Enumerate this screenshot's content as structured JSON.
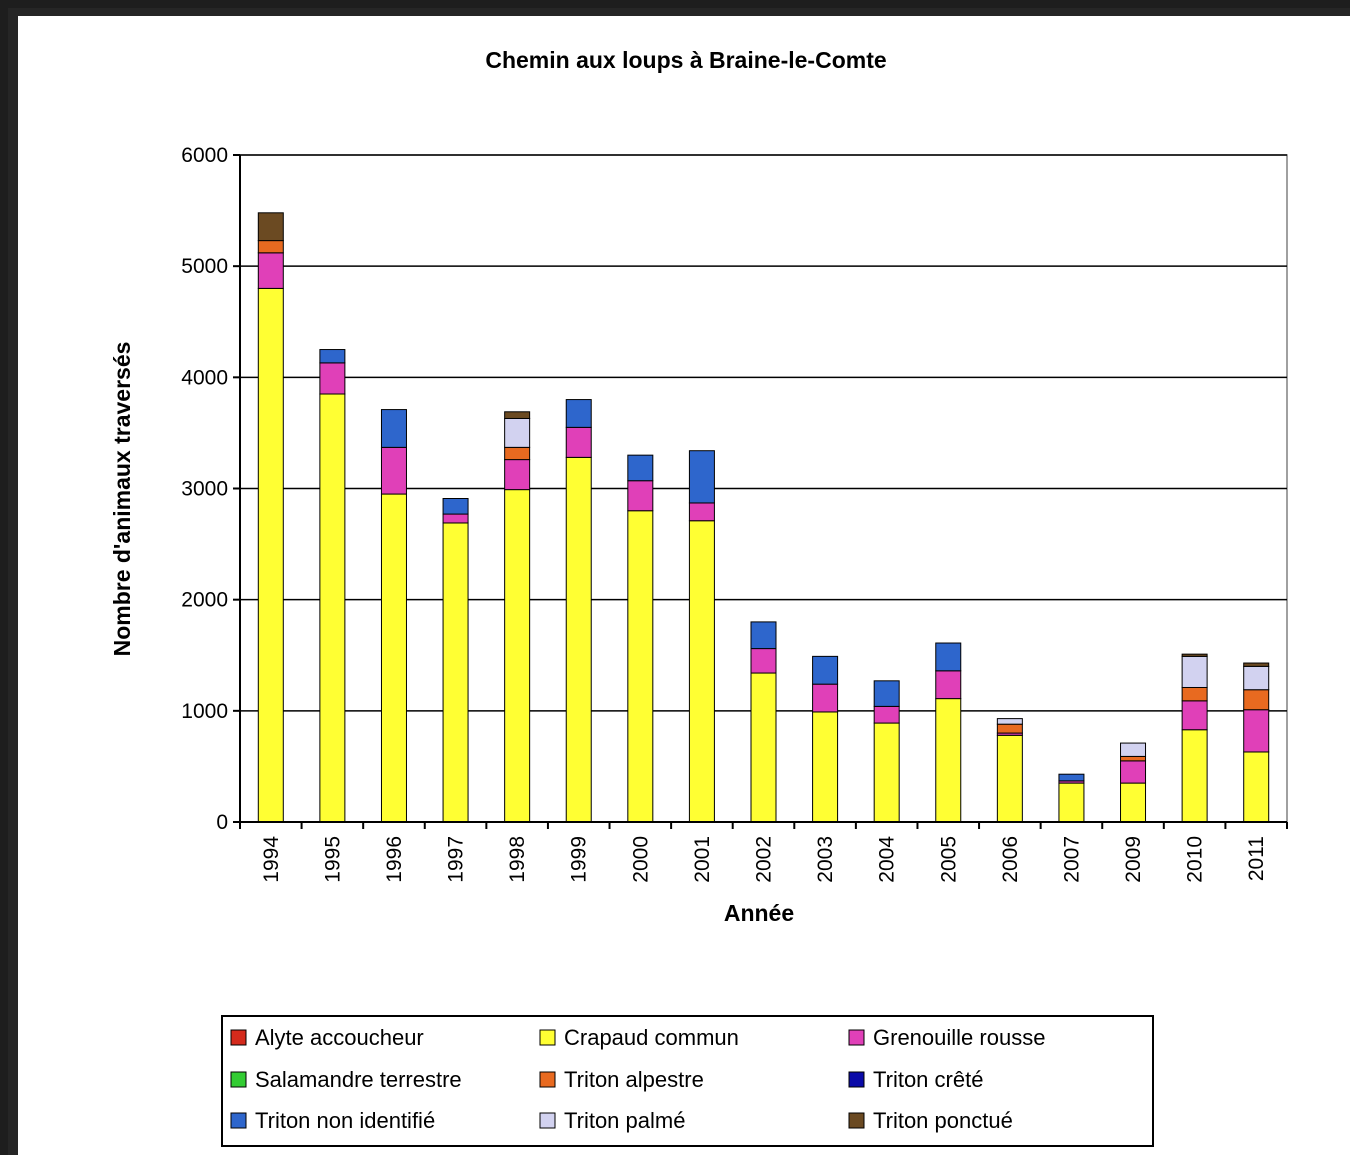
{
  "chart_data": {
    "type": "bar",
    "stacked": true,
    "title": "Chemin aux loups à Braine-le-Comte",
    "xlabel": "Année",
    "ylabel": "Nombre d'animaux traversés",
    "ylim": [
      0,
      6000
    ],
    "yticks": [
      0,
      1000,
      2000,
      3000,
      4000,
      5000,
      6000
    ],
    "grid": true,
    "legend_position": "bottom",
    "categories": [
      "1994",
      "1995",
      "1996",
      "1997",
      "1998",
      "1999",
      "2000",
      "2001",
      "2002",
      "2003",
      "2004",
      "2005",
      "2006",
      "2007",
      "2009",
      "2010",
      "2011"
    ],
    "series": [
      {
        "name": "Alyte accoucheur",
        "color": "#d42a1c",
        "values": [
          0,
          0,
          0,
          0,
          0,
          0,
          0,
          0,
          0,
          0,
          0,
          0,
          0,
          0,
          0,
          0,
          0
        ]
      },
      {
        "name": "Crapaud commun",
        "color": "#ffff33",
        "values": [
          4800,
          3850,
          2950,
          2690,
          2990,
          3280,
          2800,
          2710,
          1340,
          990,
          890,
          1110,
          780,
          350,
          350,
          830,
          630
        ]
      },
      {
        "name": "Grenouille rousse",
        "color": "#e040b8",
        "values": [
          320,
          280,
          420,
          80,
          270,
          270,
          270,
          160,
          220,
          250,
          150,
          250,
          20,
          20,
          200,
          260,
          380
        ]
      },
      {
        "name": "Salamandre terrestre",
        "color": "#33cc33",
        "values": [
          0,
          0,
          0,
          0,
          0,
          0,
          0,
          0,
          0,
          0,
          0,
          0,
          0,
          0,
          0,
          0,
          0
        ]
      },
      {
        "name": "Triton alpestre",
        "color": "#e86a20",
        "values": [
          110,
          0,
          0,
          0,
          110,
          0,
          0,
          0,
          0,
          0,
          0,
          0,
          80,
          0,
          40,
          120,
          180
        ]
      },
      {
        "name": "Triton crêté",
        "color": "#0a0aa8",
        "values": [
          0,
          0,
          0,
          0,
          0,
          0,
          0,
          0,
          0,
          0,
          0,
          0,
          0,
          0,
          0,
          0,
          0
        ]
      },
      {
        "name": "Triton non identifié",
        "color": "#2e66cc",
        "values": [
          0,
          120,
          340,
          140,
          0,
          250,
          230,
          470,
          240,
          250,
          230,
          250,
          0,
          60,
          0,
          0,
          0
        ]
      },
      {
        "name": "Triton palmé",
        "color": "#d2d2f0",
        "values": [
          0,
          0,
          0,
          0,
          260,
          0,
          0,
          0,
          0,
          0,
          0,
          0,
          50,
          0,
          120,
          280,
          210
        ]
      },
      {
        "name": "Triton ponctué",
        "color": "#6b4a22",
        "values": [
          250,
          0,
          0,
          0,
          60,
          0,
          0,
          0,
          0,
          0,
          0,
          0,
          0,
          0,
          0,
          20,
          30
        ]
      }
    ]
  }
}
